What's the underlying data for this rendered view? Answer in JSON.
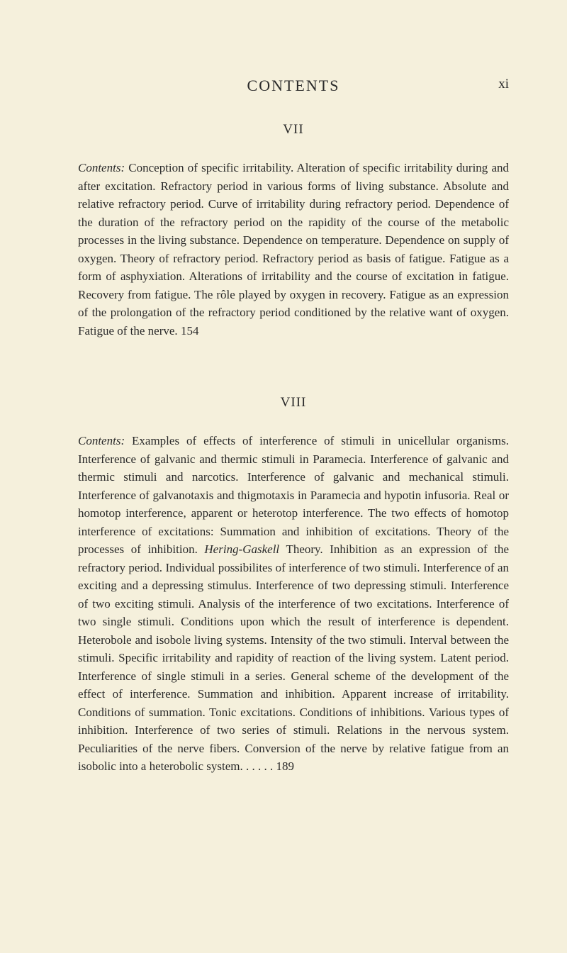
{
  "header": {
    "title": "CONTENTS",
    "page_number": "xi"
  },
  "chapters": [
    {
      "number": "VII",
      "contents_label": "Contents:",
      "text": " Conception of specific irritability. Alteration of specific irritability during and after excitation. Refractory period in various forms of living substance. Absolute and relative refractory period. Curve of irritability during refractory period. Dependence of the duration of the refractory period on the rapidity of the course of the metabolic processes in the living substance. Dependence on temperature. Dependence on supply of oxygen. Theory of refractory period. Refractory period as basis of fatigue. Fatigue as a form of asphyxiation. Alterations of irritability and the course of excitation in fatigue. Recovery from fatigue. The rôle played by oxygen in recovery. Fatigue as an expression of the prolongation of the refractory period conditioned by the relative want of oxygen. Fatigue of the nerve. ",
      "page_ref": "154"
    },
    {
      "number": "VIII",
      "contents_label": "Contents:",
      "text": " Examples of effects of interference of stimuli in unicellular organisms. Interference of galvanic and thermic stimuli in Paramecia. Interference of galvanic and thermic stimuli and narcotics. Interference of galvanic and mechanical stimuli. Interference of galvanotaxis and thigmotaxis in Paramecia and hypotin infusoria. Real or homotop interference, apparent or heterotop interference. The two effects of homotop interference of excitations: Summation and inhibition of excitations. Theory of the processes of inhibition. Hering-Gaskell Theory. Inhibition as an expression of the refractory period. Individual possibilites of interference of two stimuli. Interference of an exciting and a depressing stimulus. Interference of two depressing stimuli. Interference of two exciting stimuli. Analysis of the interference of two excitations. Interference of two single stimuli. Conditions upon which the result of interference is dependent. Heterobole and isobole living systems. Intensity of the two stimuli. Interval between the stimuli. Specific irritability and rapidity of reaction of the living system. Latent period. Interference of single stimuli in a series. General scheme of the development of the effect of interference. Summation and inhibition. Apparent increase of irritability. Conditions of summation. Tonic excitations. Conditions of inhibitions. Various types of inhibition. Interference of two series of stimuli. Relations in the nervous system. Peculiarities of the nerve fibers. Conversion of the nerve by relative fatigue from an isobolic into a heterobolic system. . . . . . ",
      "page_ref": "189",
      "italic_phrase": "Hering-Gaskell"
    }
  ],
  "styling": {
    "background_color": "#f5f0dc",
    "text_color": "#2a2a2a",
    "body_font_size": 17,
    "header_font_size": 22,
    "chapter_font_size": 19,
    "line_height": 1.5
  }
}
